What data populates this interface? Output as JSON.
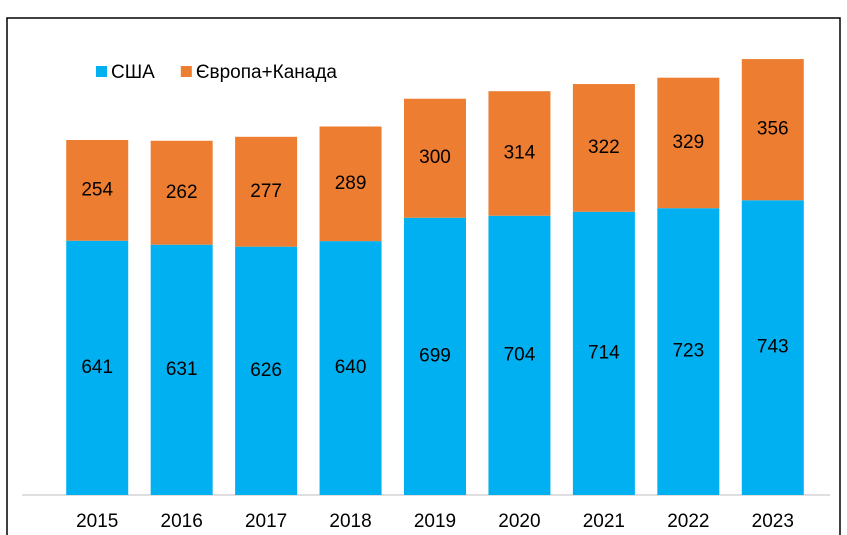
{
  "chart_data": {
    "type": "bar",
    "stacked": true,
    "categories": [
      "2015",
      "2016",
      "2017",
      "2018",
      "2019",
      "2020",
      "2021",
      "2022",
      "2023"
    ],
    "series": [
      {
        "name": "США",
        "color": "#00b0f0",
        "values": [
          641,
          631,
          626,
          640,
          699,
          704,
          714,
          723,
          743
        ]
      },
      {
        "name": "Європа+Канада",
        "color": "#ed7d31",
        "values": [
          254,
          262,
          277,
          289,
          300,
          314,
          322,
          329,
          356
        ]
      }
    ],
    "ylim": [
      0,
      1200
    ],
    "legend": "top-left"
  }
}
